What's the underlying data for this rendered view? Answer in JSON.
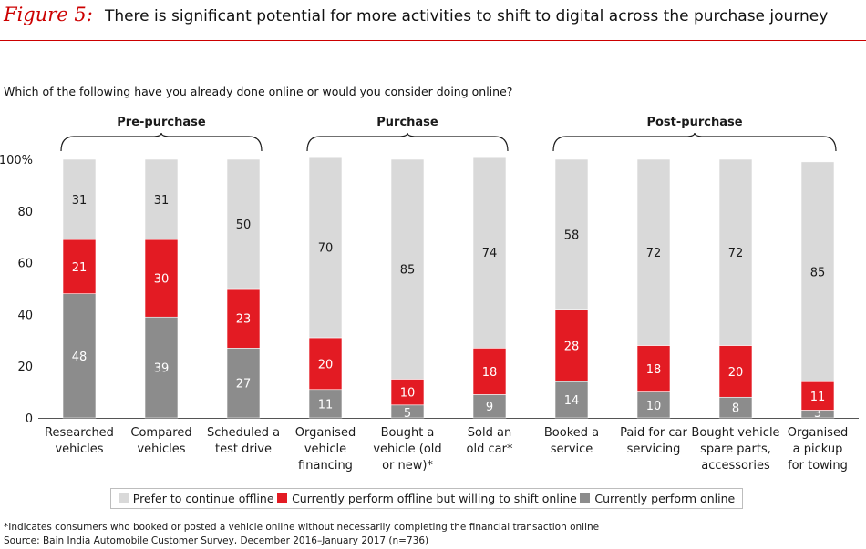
{
  "header": {
    "figure_label": "Figure 5:",
    "title": "There is significant potential for more activities to shift to digital across the purchase journey"
  },
  "question": "Which of the following have you already done online or would you consider doing online?",
  "colors": {
    "offline": "#d9d9d9",
    "willing": "#e31b23",
    "online": "#8c8c8c",
    "accent": "#cc0000"
  },
  "chart_data": {
    "type": "bar",
    "stacked": true,
    "groups": [
      {
        "label": "Pre-purchase",
        "categories": [
          "Researched vehicles",
          "Compared vehicles",
          "Scheduled a test drive"
        ]
      },
      {
        "label": "Purchase",
        "categories": [
          "Organised vehicle financing",
          "Bought a vehicle (old or new)*",
          "Sold an old car*"
        ]
      },
      {
        "label": "Post-purchase",
        "categories": [
          "Booked a service",
          "Paid for car servicing",
          "Bought vehicle spare parts, accessories",
          "Organised a pickup for towing"
        ]
      }
    ],
    "categories": [
      [
        "Researched",
        "vehicles"
      ],
      [
        "Compared",
        "vehicles"
      ],
      [
        "Scheduled a",
        "test drive"
      ],
      [
        "Organised",
        "vehicle",
        "financing"
      ],
      [
        "Bought a",
        "vehicle (old",
        "or new)*"
      ],
      [
        "Sold an",
        "old car*"
      ],
      [
        "Booked a",
        "service"
      ],
      [
        "Paid for car",
        "servicing"
      ],
      [
        "Bought vehicle",
        "spare parts,",
        "accessories"
      ],
      [
        "Organised",
        "a pickup",
        "for towing"
      ]
    ],
    "series": [
      {
        "name": "Currently perform online",
        "color": "#8c8c8c",
        "values": [
          48,
          39,
          27,
          11,
          5,
          9,
          14,
          10,
          8,
          3
        ]
      },
      {
        "name": "Currently perform offline but willing to shift online",
        "color": "#e31b23",
        "values": [
          21,
          30,
          23,
          20,
          10,
          18,
          28,
          18,
          20,
          11
        ]
      },
      {
        "name": "Prefer to continue offline",
        "color": "#d9d9d9",
        "values": [
          31,
          31,
          50,
          70,
          85,
          74,
          58,
          72,
          72,
          85
        ]
      }
    ],
    "yticks": [
      "0",
      "20",
      "40",
      "60",
      "80",
      "100%"
    ],
    "ylim": [
      0,
      100
    ],
    "legend_order": [
      "Prefer to continue offline",
      "Currently perform offline but willing to shift online",
      "Currently perform online"
    ],
    "legend_position": "bottom"
  },
  "footnote": "*Indicates consumers who booked or posted a vehicle online without necessarily completing the financial transaction online",
  "source": "Source: Bain India Automobile Customer Survey, December 2016–January 2017 (n=736)"
}
